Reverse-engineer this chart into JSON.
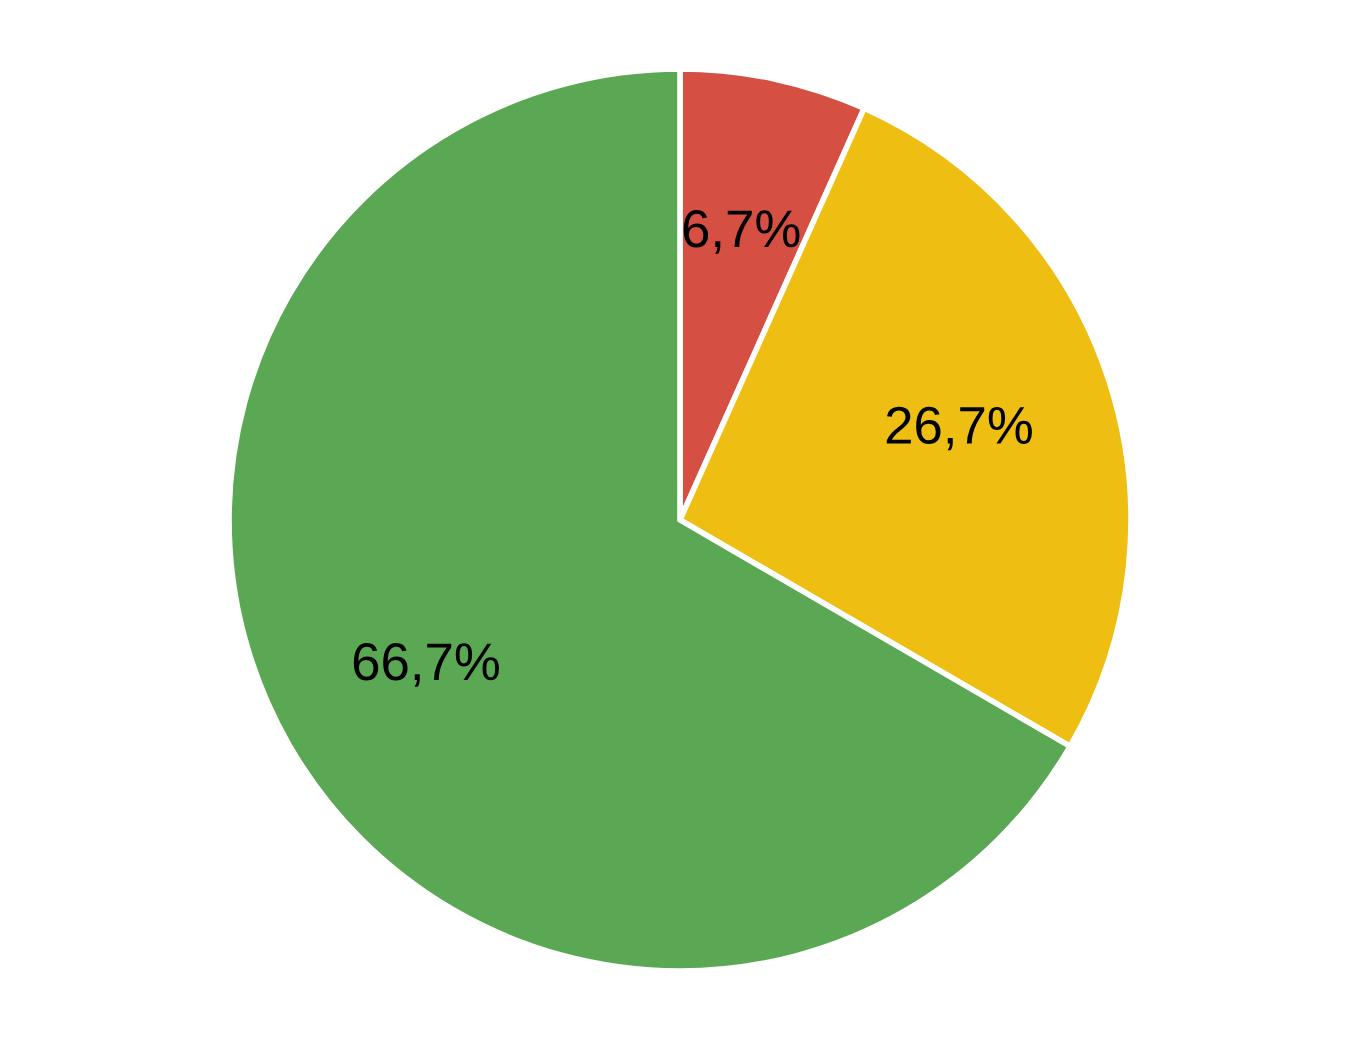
{
  "chart_data": {
    "type": "pie",
    "categories": [
      null,
      null,
      null
    ],
    "values": [
      6.7,
      26.7,
      66.7
    ],
    "colors": [
      "#d54f43",
      "#efbe13",
      "#5aa854"
    ],
    "value_labels": [
      "6,7%",
      "26,7%",
      "66,7%"
    ]
  }
}
